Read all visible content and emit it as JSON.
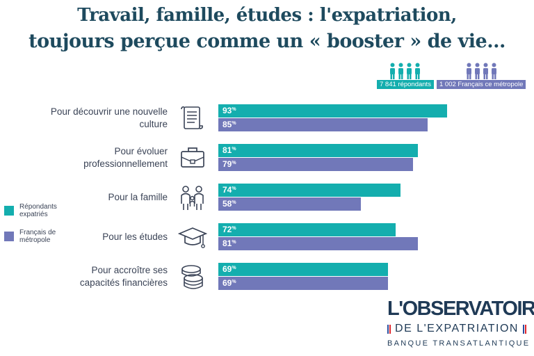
{
  "title": {
    "line1": "Travail, famille, études : l'expatriation,",
    "line2": "toujours perçue comme un « booster » de vie..."
  },
  "badges": [
    {
      "label": "7 841 répondants",
      "color": "#14aeae",
      "icon": "people-icon"
    },
    {
      "label": "1 002 Français ce métropole",
      "color": "#7178b9",
      "icon": "people-icon"
    }
  ],
  "legend": [
    {
      "label": "Répondants expatriés",
      "color": "#14aeae"
    },
    {
      "label": "Français de métropole",
      "color": "#7178b9"
    }
  ],
  "categories": [
    {
      "label": "Pour découvrir une nouvelle culture",
      "icon": "scroll-icon"
    },
    {
      "label": "Pour évoluer professionnellement",
      "icon": "briefcase-icon"
    },
    {
      "label": "Pour la famille",
      "icon": "family-icon"
    },
    {
      "label": "Pour les études",
      "icon": "graduation-cap-icon"
    },
    {
      "label": "Pour accroître ses capacités financières",
      "icon": "coins-icon"
    }
  ],
  "chart_data": {
    "type": "bar",
    "orientation": "horizontal",
    "categories": [
      "Pour découvrir une nouvelle culture",
      "Pour évoluer professionnellement",
      "Pour la famille",
      "Pour les études",
      "Pour accroître ses capacités financières"
    ],
    "series": [
      {
        "name": "Répondants expatriés",
        "values": [
          93,
          81,
          74,
          72,
          69
        ],
        "color": "#14aeae"
      },
      {
        "name": "Français de métropole",
        "values": [
          85,
          79,
          58,
          81,
          69
        ],
        "color": "#7178b9"
      }
    ],
    "value_suffix": "%",
    "xlim": [
      0,
      100
    ],
    "grid": false,
    "legend_position": "left"
  },
  "logo": {
    "line1": "L'OBSERVATOIRE",
    "line2": "DE L'EXPATRIATION",
    "line3": "BANQUE TRANSATLANTIQUE",
    "flag_colors": [
      "#2a4fa0",
      "#ffffff",
      "#e0262c"
    ]
  }
}
